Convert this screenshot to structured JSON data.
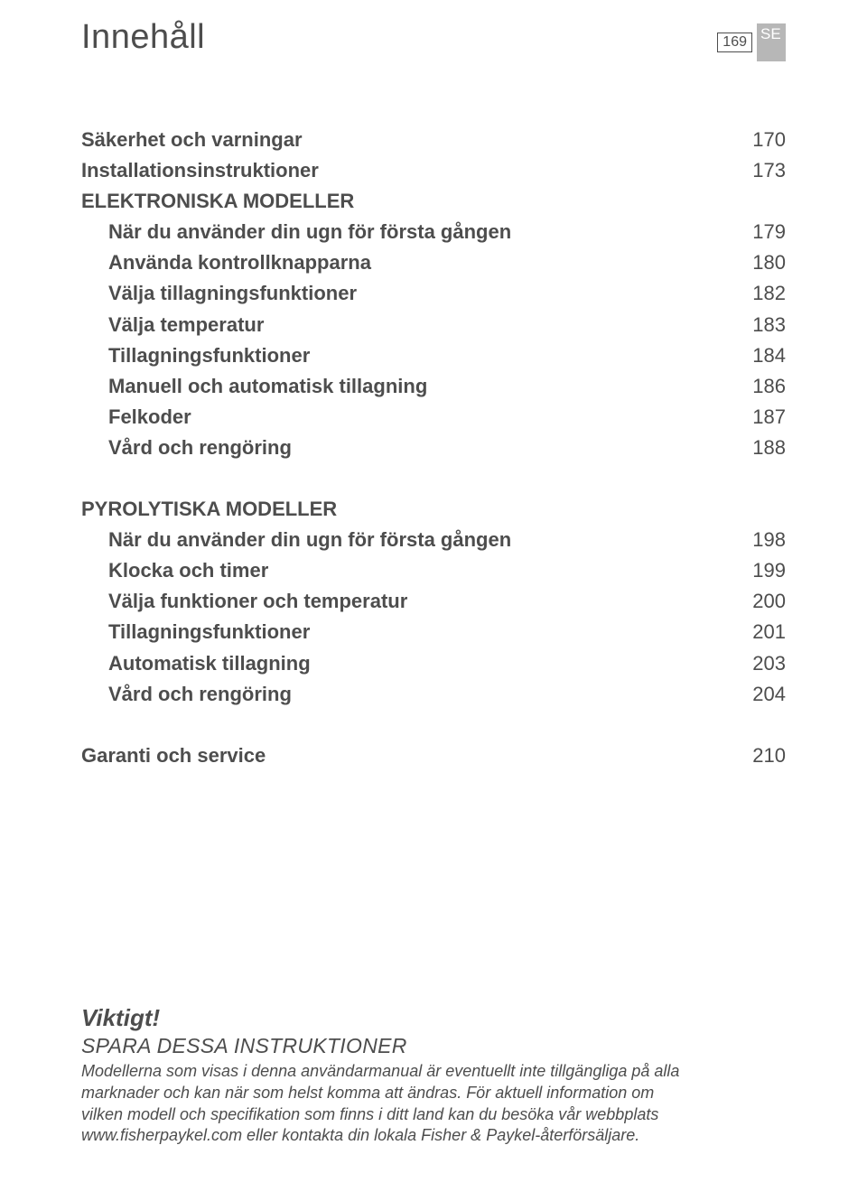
{
  "header": {
    "title": "Innehåll",
    "page_number": "169",
    "lang": "SE"
  },
  "toc": {
    "rows": [
      {
        "label": "Säkerhet och varningar",
        "page": "170",
        "bold": true,
        "indent": false
      },
      {
        "label": "Installationsinstruktioner",
        "page": "173",
        "bold": true,
        "indent": false
      }
    ],
    "section1": {
      "heading": "ELEKTRONISKA MODELLER",
      "rows": [
        {
          "label": "När du använder din ugn för första gången",
          "page": "179",
          "bold": true,
          "indent": true
        },
        {
          "label": "Använda kontrollknapparna",
          "page": "180",
          "bold": true,
          "indent": true
        },
        {
          "label": "Välja tillagningsfunktioner",
          "page": "182",
          "bold": true,
          "indent": true
        },
        {
          "label": "Välja temperatur",
          "page": "183",
          "bold": true,
          "indent": true
        },
        {
          "label": "Tillagningsfunktioner",
          "page": "184",
          "bold": true,
          "indent": true
        },
        {
          "label": "Manuell och automatisk tillagning",
          "page": "186",
          "bold": true,
          "indent": true
        },
        {
          "label": "Felkoder",
          "page": "187",
          "bold": true,
          "indent": true
        },
        {
          "label": "Vård och rengöring",
          "page": "188",
          "bold": true,
          "indent": true
        }
      ]
    },
    "section2": {
      "heading": "PYROLYTISKA MODELLER",
      "rows": [
        {
          "label": "När du använder din ugn för första gången",
          "page": "198",
          "bold": true,
          "indent": true
        },
        {
          "label": "Klocka och timer",
          "page": "199",
          "bold": true,
          "indent": true
        },
        {
          "label": "Välja funktioner och temperatur",
          "page": "200",
          "bold": true,
          "indent": true
        },
        {
          "label": "Tillagningsfunktioner",
          "page": "201",
          "bold": true,
          "indent": true
        },
        {
          "label": "Automatisk tillagning",
          "page": "203",
          "bold": true,
          "indent": true
        },
        {
          "label": "Vård och rengöring",
          "page": "204",
          "bold": true,
          "indent": true
        }
      ]
    },
    "footer_rows": [
      {
        "label": "Garanti och service",
        "page": "210",
        "bold": true,
        "indent": false
      }
    ]
  },
  "note": {
    "heading": "Viktigt!",
    "subheading": "SPARA DESSA INSTRUKTIONER",
    "body": "Modellerna som visas i denna användarmanual är eventuellt inte tillgängliga på alla marknader och kan när som helst komma att ändras. För aktuell information om vilken modell och specifikation som finns i ditt land kan du besöka vår webbplats www.fisherpaykel.com eller kontakta din lokala Fisher & Paykel-återförsäljare."
  },
  "colors": {
    "text": "#4d4d4d",
    "lang_bg": "#b7b7b7",
    "lang_fg": "#ffffff",
    "background": "#ffffff"
  }
}
